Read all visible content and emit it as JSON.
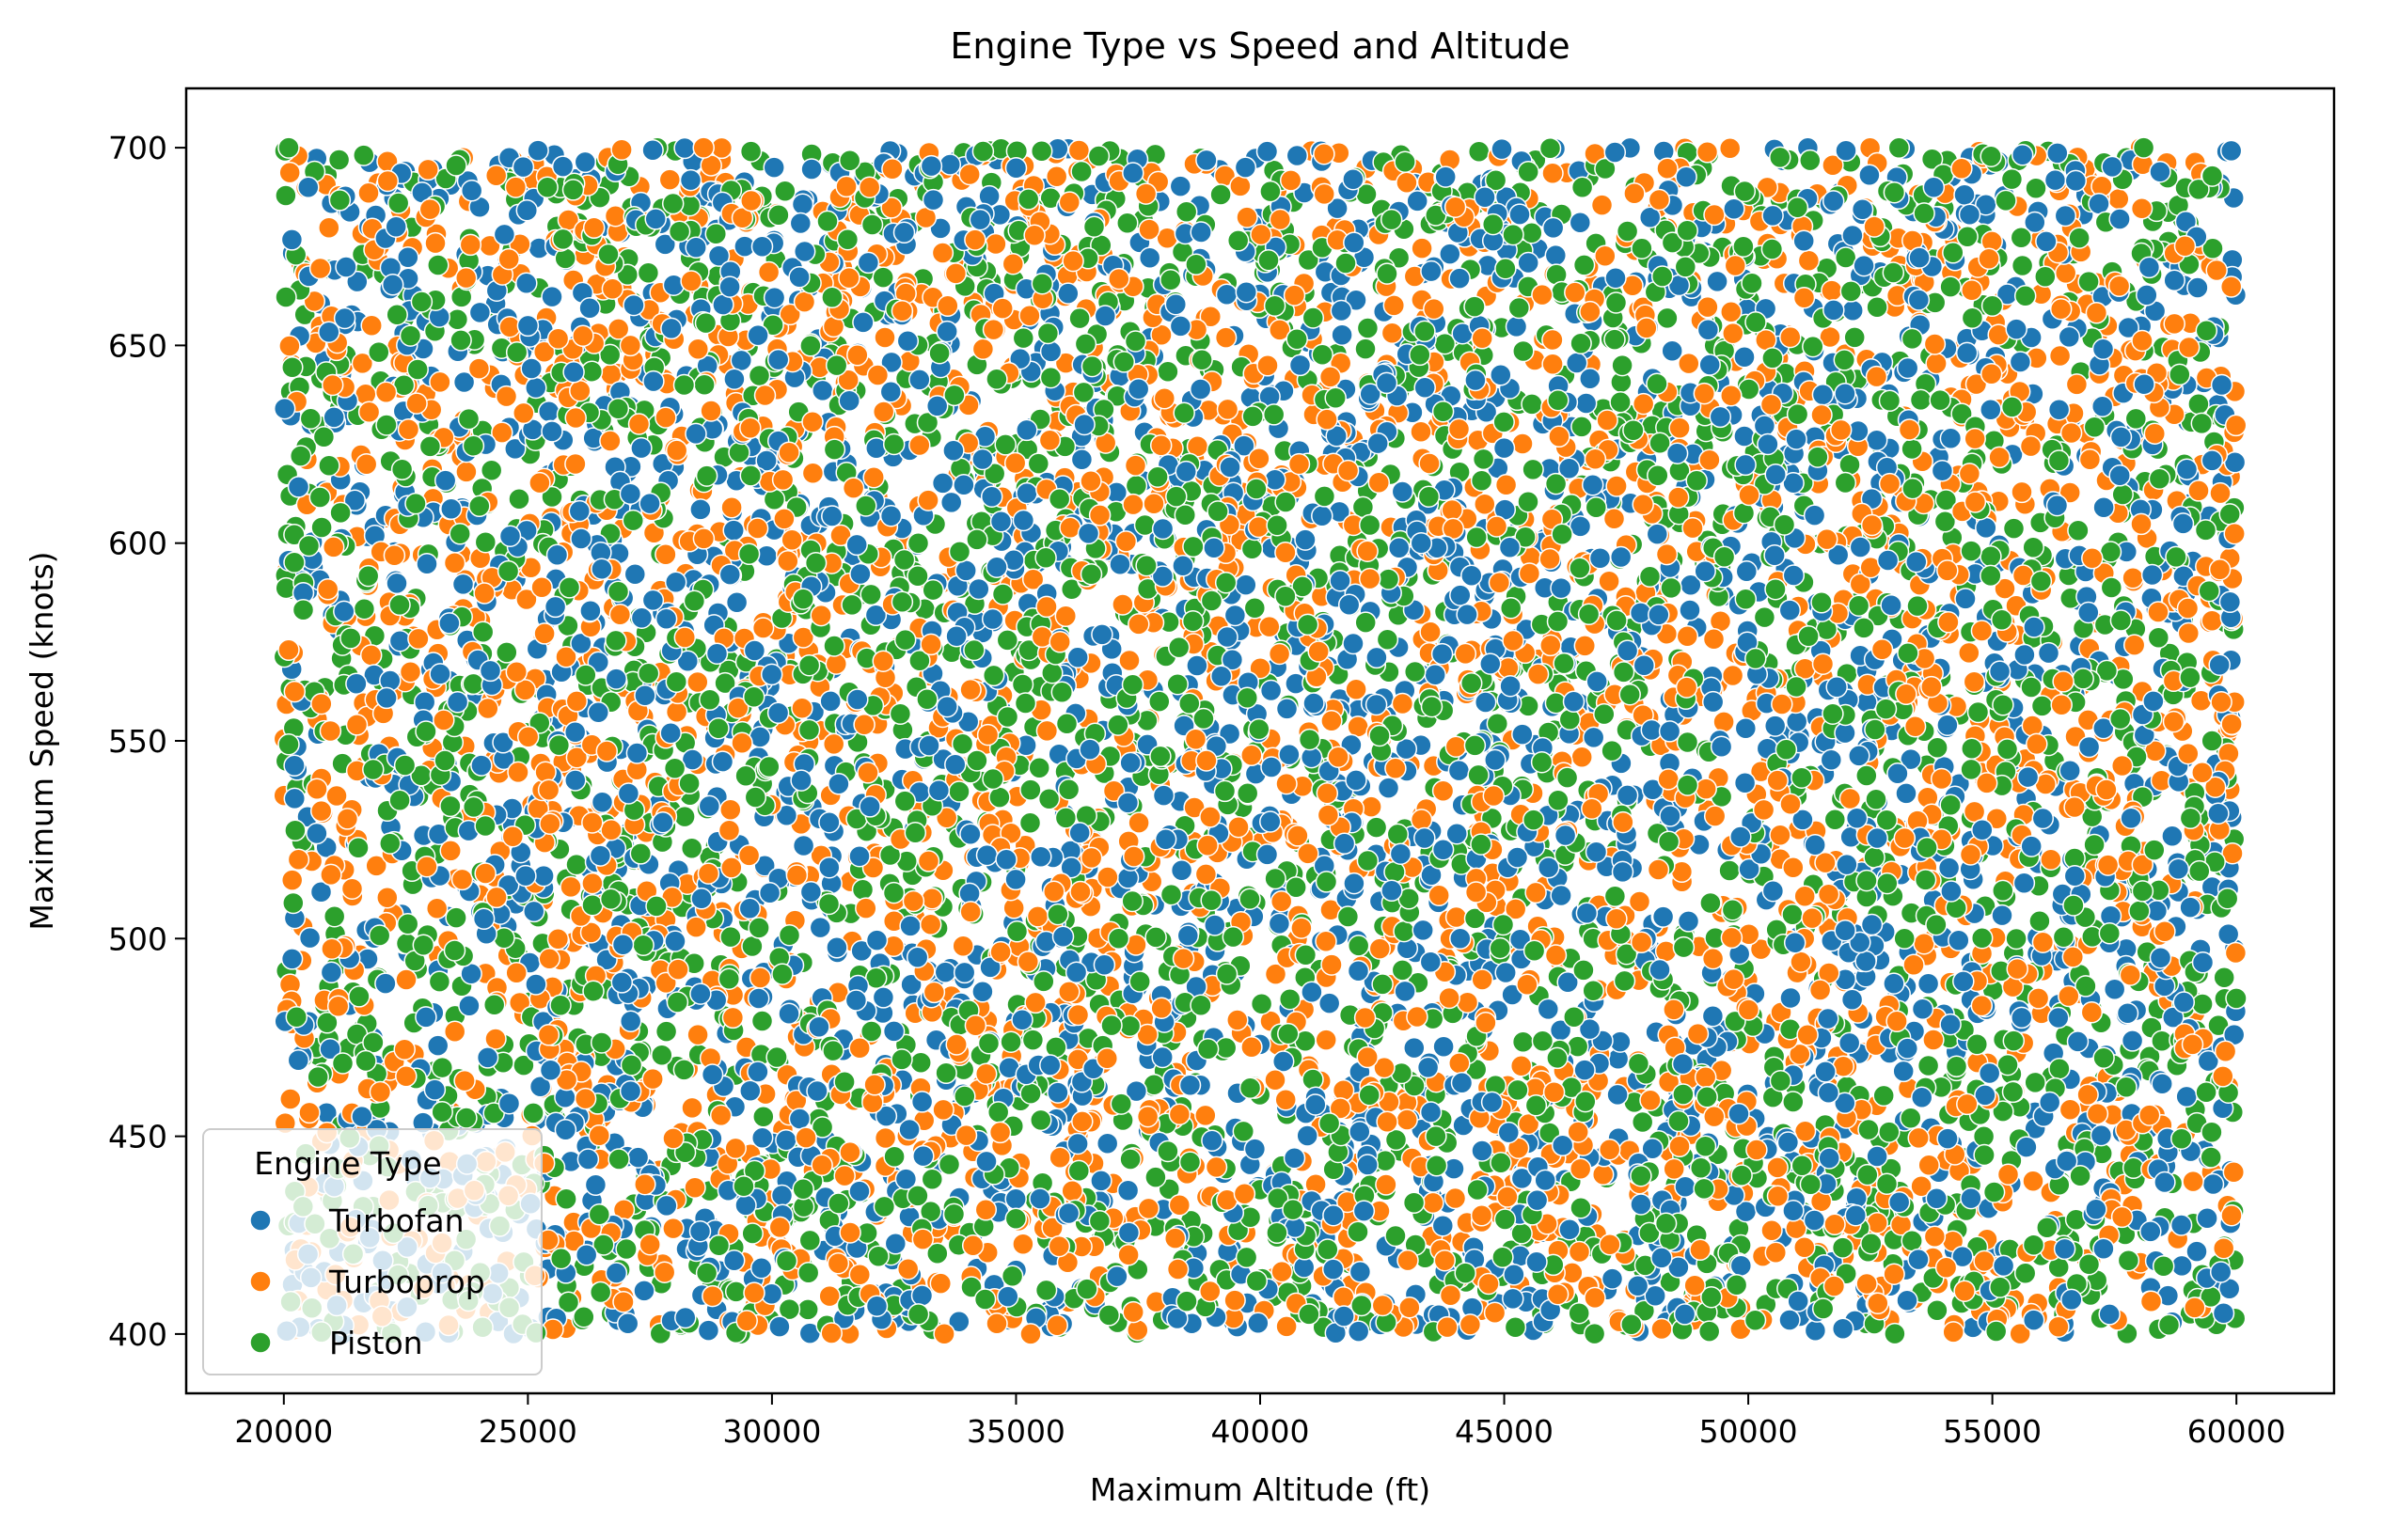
{
  "chart_data": {
    "type": "scatter",
    "title": "Engine Type vs Speed and Altitude",
    "xlabel": "Maximum Altitude (ft)",
    "ylabel": "Maximum Speed (knots)",
    "xlim": [
      18000,
      62000
    ],
    "ylim": [
      385,
      715
    ],
    "x_ticks": [
      20000,
      25000,
      30000,
      35000,
      40000,
      45000,
      50000,
      55000,
      60000
    ],
    "y_ticks": [
      400,
      450,
      500,
      550,
      600,
      650,
      700
    ],
    "x_range_of_points": [
      20000,
      60000
    ],
    "y_range_of_points": [
      400,
      700
    ],
    "grid": false,
    "legend": {
      "title": "Engine Type",
      "placement": "lower-left",
      "entries": [
        {
          "label": "Turbofan",
          "color": "#1f77b4"
        },
        {
          "label": "Turboprop",
          "color": "#ff7f0e"
        },
        {
          "label": "Piston",
          "color": "#2ca02c"
        }
      ]
    },
    "series": [
      {
        "name": "Turbofan",
        "color": "#1f77b4",
        "points": [
          [
            20500,
            690
          ],
          [
            22300,
            680
          ],
          [
            25000,
            655
          ],
          [
            27500,
            610
          ],
          [
            31200,
            560
          ],
          [
            34800,
            520
          ],
          [
            38000,
            470
          ],
          [
            41500,
            430
          ],
          [
            45200,
            415
          ],
          [
            48700,
            405
          ],
          [
            52200,
            430
          ],
          [
            55600,
            480
          ],
          [
            58300,
            560
          ],
          [
            59700,
            640
          ],
          [
            43300,
            600
          ],
          [
            36400,
            630
          ],
          [
            29800,
            675
          ],
          [
            24100,
            505
          ],
          [
            21600,
            455
          ],
          [
            33100,
            445
          ],
          [
            46900,
            565
          ],
          [
            50400,
            625
          ],
          [
            53800,
            690
          ],
          [
            57400,
            405
          ],
          [
            39700,
            695
          ],
          [
            26200,
            420
          ],
          [
            30600,
            540
          ],
          [
            44100,
            500
          ]
        ]
      },
      {
        "name": "Turboprop",
        "color": "#ff7f0e",
        "points": [
          [
            21000,
            640
          ],
          [
            23500,
            595
          ],
          [
            26000,
            560
          ],
          [
            28600,
            700
          ],
          [
            32000,
            690
          ],
          [
            35300,
            400
          ],
          [
            37700,
            455
          ],
          [
            40800,
            620
          ],
          [
            44000,
            685
          ],
          [
            47300,
            505
          ],
          [
            50600,
            540
          ],
          [
            54100,
            580
          ],
          [
            57600,
            665
          ],
          [
            59900,
            430
          ],
          [
            42200,
            470
          ],
          [
            35900,
            575
          ],
          [
            29200,
            480
          ],
          [
            24600,
            435
          ],
          [
            20300,
            520
          ],
          [
            33600,
            660
          ],
          [
            46100,
            410
          ],
          [
            49300,
            455
          ],
          [
            52900,
            615
          ],
          [
            56200,
            520
          ],
          [
            38900,
            545
          ],
          [
            27100,
            650
          ],
          [
            31800,
            415
          ],
          [
            44900,
            590
          ]
        ]
      },
      {
        "name": "Piston",
        "color": "#2ca02c",
        "points": [
          [
            20100,
            700
          ],
          [
            22700,
            610
          ],
          [
            25400,
            690
          ],
          [
            28200,
            640
          ],
          [
            30900,
            595
          ],
          [
            34200,
            545
          ],
          [
            37100,
            500
          ],
          [
            40300,
            660
          ],
          [
            43600,
            450
          ],
          [
            46600,
            690
          ],
          [
            49900,
            675
          ],
          [
            53200,
            500
          ],
          [
            56800,
            440
          ],
          [
            59500,
            550
          ],
          [
            41000,
            405
          ],
          [
            36600,
            680
          ],
          [
            30100,
            470
          ],
          [
            23300,
            545
          ],
          [
            20700,
            465
          ],
          [
            33000,
            405
          ],
          [
            47800,
            440
          ],
          [
            51500,
            585
          ],
          [
            55000,
            660
          ],
          [
            58100,
            700
          ],
          [
            39300,
            590
          ],
          [
            26700,
            510
          ],
          [
            32500,
            625
          ],
          [
            45600,
            530
          ]
        ]
      }
    ]
  }
}
